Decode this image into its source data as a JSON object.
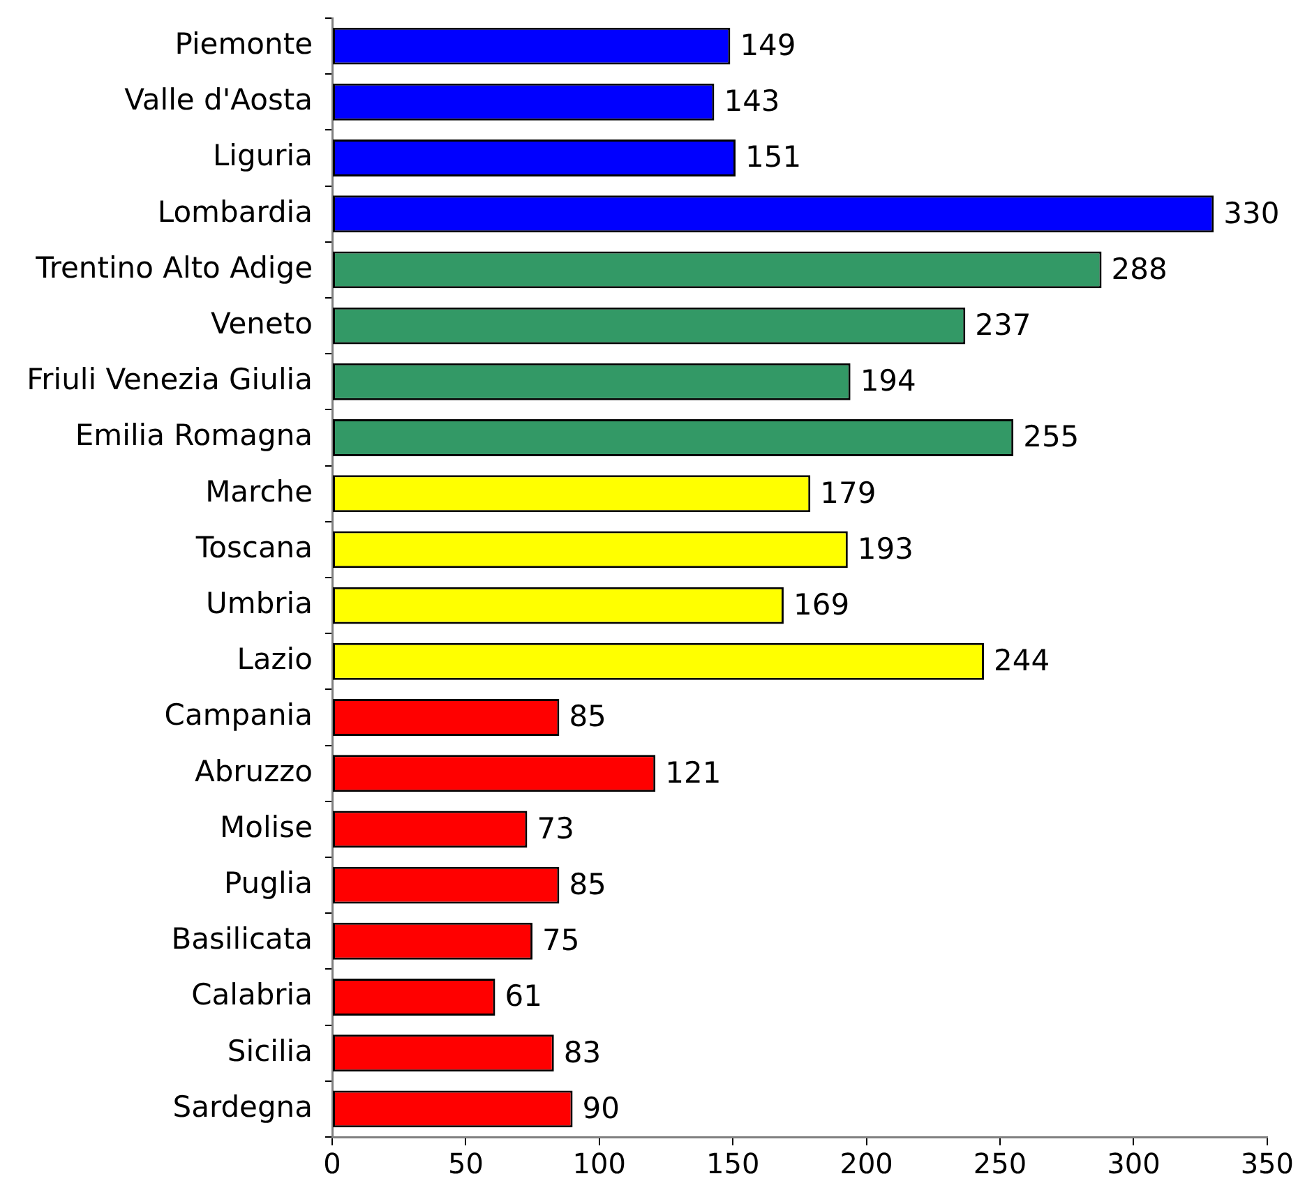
{
  "chart_data": {
    "type": "bar",
    "orientation": "horizontal",
    "categories": [
      "Piemonte",
      "Valle d'Aosta",
      "Liguria",
      "Lombardia",
      "Trentino Alto Adige",
      "Veneto",
      "Friuli Venezia Giulia",
      "Emilia Romagna",
      "Marche",
      "Toscana",
      "Umbria",
      "Lazio",
      "Campania",
      "Abruzzo",
      "Molise",
      "Puglia",
      "Basilicata",
      "Calabria",
      "Sicilia",
      "Sardegna"
    ],
    "values": [
      149,
      143,
      151,
      330,
      288,
      237,
      194,
      255,
      179,
      193,
      169,
      244,
      85,
      121,
      73,
      85,
      75,
      61,
      83,
      90
    ],
    "colors": [
      "#0000ff",
      "#0000ff",
      "#0000ff",
      "#0000ff",
      "#339966",
      "#339966",
      "#339966",
      "#339966",
      "#ffff00",
      "#ffff00",
      "#ffff00",
      "#ffff00",
      "#ff0000",
      "#ff0000",
      "#ff0000",
      "#ff0000",
      "#ff0000",
      "#ff0000",
      "#ff0000",
      "#ff0000"
    ],
    "xlim": [
      0,
      350
    ],
    "xticks": [
      0,
      50,
      100,
      150,
      200,
      250,
      300,
      350
    ],
    "data_labels": true,
    "grid": false,
    "legend": false
  }
}
